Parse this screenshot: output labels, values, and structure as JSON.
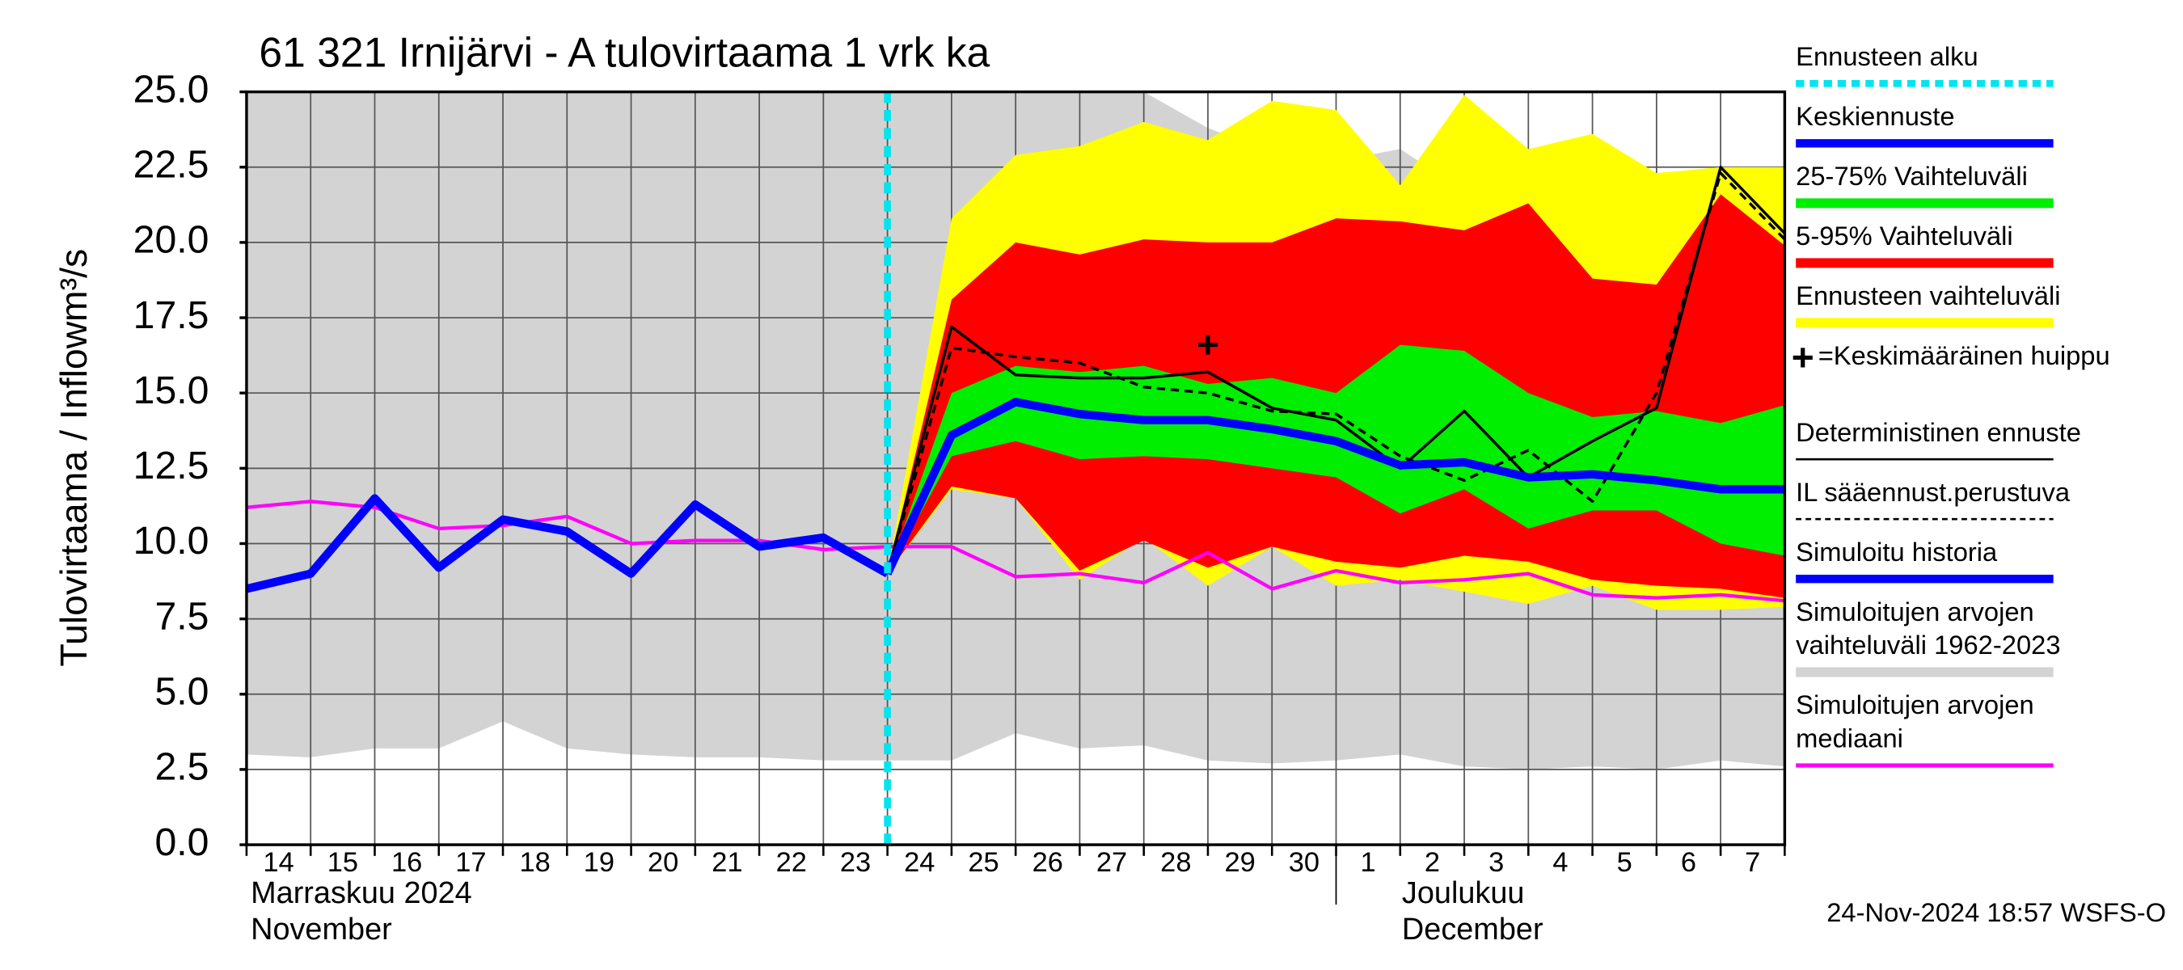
{
  "chart_data": {
    "type": "line",
    "title": "61 321 Irnijärvi - A tulovirtaama 1 vrk ka",
    "y_label": "Tulovirtaama / Inflow",
    "y_unit": "m³/s",
    "categories": [
      "14",
      "15",
      "16",
      "17",
      "18",
      "19",
      "20",
      "21",
      "22",
      "23",
      "24",
      "25",
      "26",
      "27",
      "28",
      "29",
      "30",
      "1",
      "2",
      "3",
      "4",
      "5",
      "6",
      "7",
      null
    ],
    "month_labels": [
      "Marraskuu 2024",
      "November",
      "Joulukuu",
      "December"
    ],
    "timestamp": "24-Nov-2024 18:57 WSFS-O",
    "ylim": [
      0,
      25
    ],
    "yticks": [
      {
        "value": 0,
        "label": "0.0"
      },
      2.5,
      {
        "value": 5,
        "label": "5.0"
      },
      7.5,
      {
        "value": 10,
        "label": "10.0"
      },
      12.5,
      {
        "value": 15,
        "label": "15.0"
      },
      17.5,
      {
        "value": 20,
        "label": "20.0"
      },
      22.5,
      {
        "value": 25,
        "label": "25.0"
      }
    ],
    "grid": true,
    "forecast_start": {
      "name": "Ennusteen alku",
      "category": "24",
      "color": "#00e5ee"
    },
    "peak": {
      "name": "=Keskimääräinen huippu",
      "category": "29",
      "value": 16.6,
      "color": "#000000"
    },
    "series": [
      {
        "name": "Keskiennuste",
        "style": "line",
        "color": "#0000ff",
        "width": 6,
        "values": [
          null,
          null,
          null,
          null,
          null,
          null,
          null,
          null,
          null,
          null,
          9.0,
          13.6,
          14.7,
          14.3,
          14.1,
          14.1,
          13.8,
          13.4,
          12.6,
          12.7,
          12.2,
          12.3,
          12.1,
          11.8,
          11.8
        ]
      },
      {
        "name": "25-75% Vaihteluväli",
        "style": "band",
        "color": "#00ee00",
        "upper": [
          null,
          null,
          null,
          null,
          null,
          null,
          null,
          null,
          null,
          null,
          9.0,
          15.0,
          15.9,
          15.7,
          15.9,
          15.3,
          15.5,
          15.0,
          16.6,
          16.4,
          15.0,
          14.2,
          14.4,
          14.0,
          14.6
        ],
        "lower": [
          null,
          null,
          null,
          null,
          null,
          null,
          null,
          null,
          null,
          null,
          9.0,
          12.9,
          13.4,
          12.8,
          12.9,
          12.8,
          12.5,
          12.2,
          11.0,
          11.8,
          10.5,
          11.1,
          11.1,
          10.0,
          9.6
        ]
      },
      {
        "name": "5-95% Vaihteluväli",
        "style": "band",
        "color": "#ff0000",
        "upper": [
          null,
          null,
          null,
          null,
          null,
          null,
          null,
          null,
          null,
          null,
          9.0,
          18.1,
          20.0,
          19.6,
          20.1,
          20.0,
          20.0,
          20.8,
          20.7,
          20.4,
          21.3,
          18.8,
          18.6,
          21.6,
          19.9
        ],
        "lower": [
          null,
          null,
          null,
          null,
          null,
          null,
          null,
          null,
          null,
          null,
          9.0,
          11.9,
          11.5,
          9.1,
          10.1,
          9.2,
          9.9,
          9.4,
          9.2,
          9.6,
          9.4,
          8.8,
          8.6,
          8.5,
          8.2
        ]
      },
      {
        "name": "Ennusteen vaihteluväli",
        "style": "band",
        "color": "#ffff00",
        "upper": [
          null,
          null,
          null,
          null,
          null,
          null,
          null,
          null,
          null,
          null,
          9.0,
          20.8,
          22.9,
          23.2,
          24.0,
          23.4,
          24.7,
          24.4,
          21.9,
          24.9,
          23.1,
          23.6,
          22.3,
          22.5,
          22.5
        ],
        "lower": [
          null,
          null,
          null,
          null,
          null,
          null,
          null,
          null,
          null,
          null,
          9.0,
          11.8,
          11.5,
          8.8,
          10.2,
          8.6,
          9.9,
          8.6,
          8.8,
          8.4,
          8.0,
          8.6,
          7.8,
          7.8,
          7.9
        ]
      },
      {
        "name": "Deterministinen ennuste",
        "style": "line",
        "color": "#000000",
        "width": 2,
        "values": [
          null,
          null,
          null,
          null,
          null,
          null,
          null,
          null,
          null,
          null,
          9.0,
          17.2,
          15.6,
          15.5,
          15.5,
          15.7,
          14.5,
          14.1,
          12.5,
          14.4,
          12.2,
          13.4,
          14.5,
          22.5,
          20.3
        ]
      },
      {
        "name": "IL sääennust.perustuva",
        "style": "dashed",
        "color": "#000000",
        "width": 2,
        "values": [
          null,
          null,
          null,
          null,
          null,
          null,
          null,
          null,
          null,
          null,
          9.0,
          16.5,
          16.2,
          16.0,
          15.2,
          15.0,
          14.4,
          14.3,
          12.9,
          12.1,
          13.1,
          11.4,
          15.0,
          22.3,
          20.1
        ]
      },
      {
        "name": "Simuloitu historia",
        "style": "line",
        "color": "#0000ff",
        "width": 6,
        "values": [
          8.5,
          9.0,
          11.5,
          9.2,
          10.8,
          10.4,
          9.0,
          11.3,
          9.9,
          10.2,
          9.0,
          null,
          null,
          null,
          null,
          null,
          null,
          null,
          null,
          null,
          null,
          null,
          null,
          null,
          null
        ]
      },
      {
        "name": "Simuloitujen arvojen vaihteluväli 1962-2023",
        "style": "band",
        "color": "#d3d3d3",
        "upper": [
          25,
          25,
          25,
          25,
          25,
          25,
          25,
          25,
          25,
          25,
          25,
          25,
          25,
          25,
          25,
          23.8,
          23.0,
          22.7,
          23.1,
          21.7,
          21.5,
          23.5,
          21.2,
          21.8,
          21.7
        ],
        "lower": [
          3.0,
          2.9,
          3.2,
          3.2,
          4.1,
          3.2,
          3.0,
          2.9,
          2.9,
          2.8,
          2.8,
          2.8,
          3.7,
          3.2,
          3.3,
          2.8,
          2.7,
          2.8,
          3.0,
          2.6,
          2.5,
          2.6,
          2.5,
          2.8,
          2.6
        ]
      },
      {
        "name": "Simuloitujen arvojen mediaani",
        "style": "line",
        "color": "#ff00ff",
        "width": 2.5,
        "values": [
          11.2,
          11.4,
          11.2,
          10.5,
          10.6,
          10.9,
          10.0,
          10.1,
          10.1,
          9.8,
          9.9,
          9.9,
          8.9,
          9.0,
          8.7,
          9.7,
          8.5,
          9.1,
          8.7,
          8.8,
          9.0,
          8.3,
          8.2,
          8.3,
          8.1
        ]
      }
    ]
  }
}
